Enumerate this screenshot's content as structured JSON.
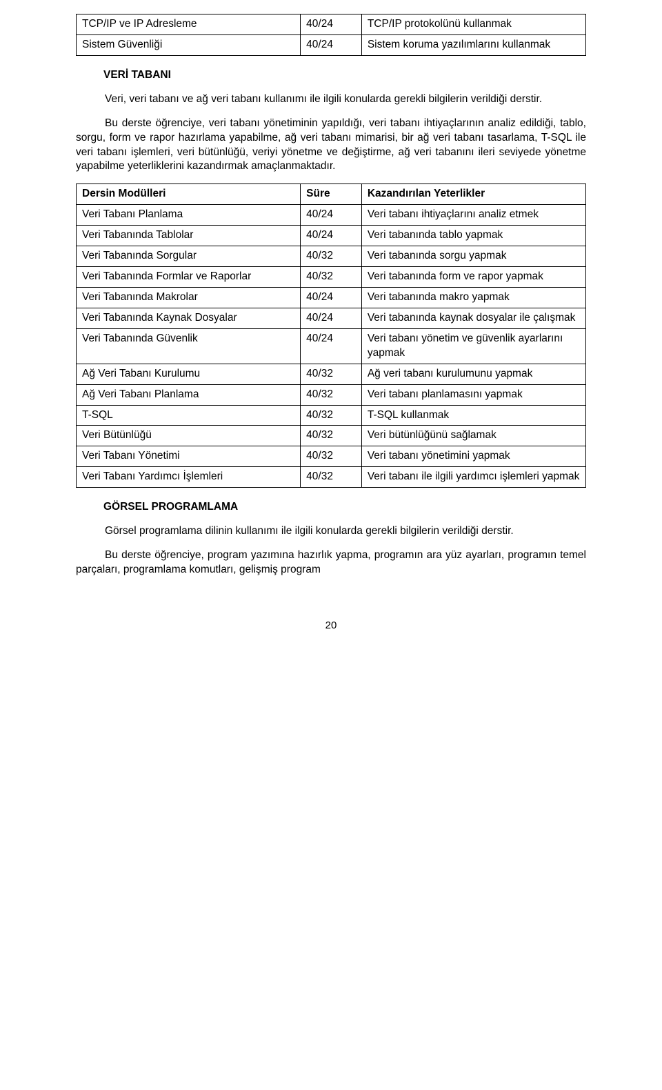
{
  "topTable": {
    "rows": [
      {
        "c0": "TCP/IP ve IP Adresleme",
        "c1": "40/24",
        "c2": "TCP/IP protokolünü kullanmak"
      },
      {
        "c0": "Sistem Güvenliği",
        "c1": "40/24",
        "c2": "Sistem koruma yazılımlarını kullanmak"
      }
    ]
  },
  "section1": {
    "title": "VERİ TABANI",
    "para1": "Veri, veri tabanı ve ağ veri tabanı kullanımı ile ilgili konularda gerekli bilgilerin verildiği derstir.",
    "para2": "Bu derste öğrenciye, veri tabanı yönetiminin yapıldığı, veri tabanı ihtiyaçlarının analiz edildiği, tablo, sorgu, form ve rapor hazırlama yapabilme, ağ veri tabanı mimarisi, bir ağ veri tabanı tasarlama, T-SQL ile veri tabanı işlemleri, veri bütünlüğü, veriyi yönetme ve değiştirme, ağ veri tabanını ileri seviyede yönetme yapabilme yeterliklerini kazandırmak amaçlanmaktadır."
  },
  "mainTable": {
    "header": {
      "c0": "Dersin Modülleri",
      "c1": "Süre",
      "c2": "Kazandırılan Yeterlikler"
    },
    "rows": [
      {
        "c0": "Veri Tabanı Planlama",
        "c1": "40/24",
        "c2": "Veri tabanı ihtiyaçlarını analiz etmek"
      },
      {
        "c0": "Veri Tabanında Tablolar",
        "c1": "40/24",
        "c2": "Veri tabanında tablo yapmak"
      },
      {
        "c0": "Veri Tabanında Sorgular",
        "c1": "40/32",
        "c2": "Veri tabanında sorgu yapmak"
      },
      {
        "c0": "Veri Tabanında Formlar ve Raporlar",
        "c1": "40/32",
        "c2": "Veri tabanında form ve rapor yapmak"
      },
      {
        "c0": "Veri Tabanında Makrolar",
        "c1": "40/24",
        "c2": "Veri tabanında makro yapmak"
      },
      {
        "c0": "Veri Tabanında Kaynak Dosyalar",
        "c1": "40/24",
        "c2": "Veri tabanında kaynak dosyalar ile çalışmak"
      },
      {
        "c0": "Veri Tabanında Güvenlik",
        "c1": "40/24",
        "c2": "Veri tabanı yönetim ve güvenlik ayarlarını yapmak"
      },
      {
        "c0": "Ağ Veri Tabanı Kurulumu",
        "c1": "40/32",
        "c2": "Ağ veri tabanı kurulumunu yapmak"
      },
      {
        "c0": "Ağ Veri Tabanı Planlama",
        "c1": "40/32",
        "c2": "Veri tabanı planlamasını yapmak"
      },
      {
        "c0": "T-SQL",
        "c1": "40/32",
        "c2": "T-SQL kullanmak"
      },
      {
        "c0": "Veri Bütünlüğü",
        "c1": "40/32",
        "c2": "Veri bütünlüğünü sağlamak"
      },
      {
        "c0": "Veri Tabanı Yönetimi",
        "c1": "40/32",
        "c2": "Veri tabanı yönetimini yapmak"
      },
      {
        "c0": "Veri Tabanı Yardımcı İşlemleri",
        "c1": "40/32",
        "c2": "Veri tabanı ile ilgili yardımcı işlemleri yapmak"
      }
    ]
  },
  "section2": {
    "title": "GÖRSEL PROGRAMLAMA",
    "para1": "Görsel programlama dilinin kullanımı ile ilgili konularda gerekli bilgilerin verildiği derstir.",
    "para2": "Bu derste öğrenciye, program yazımına hazırlık yapma, programın ara yüz ayarları, programın temel parçaları, programlama komutları, gelişmiş program"
  },
  "pageNumber": "20"
}
